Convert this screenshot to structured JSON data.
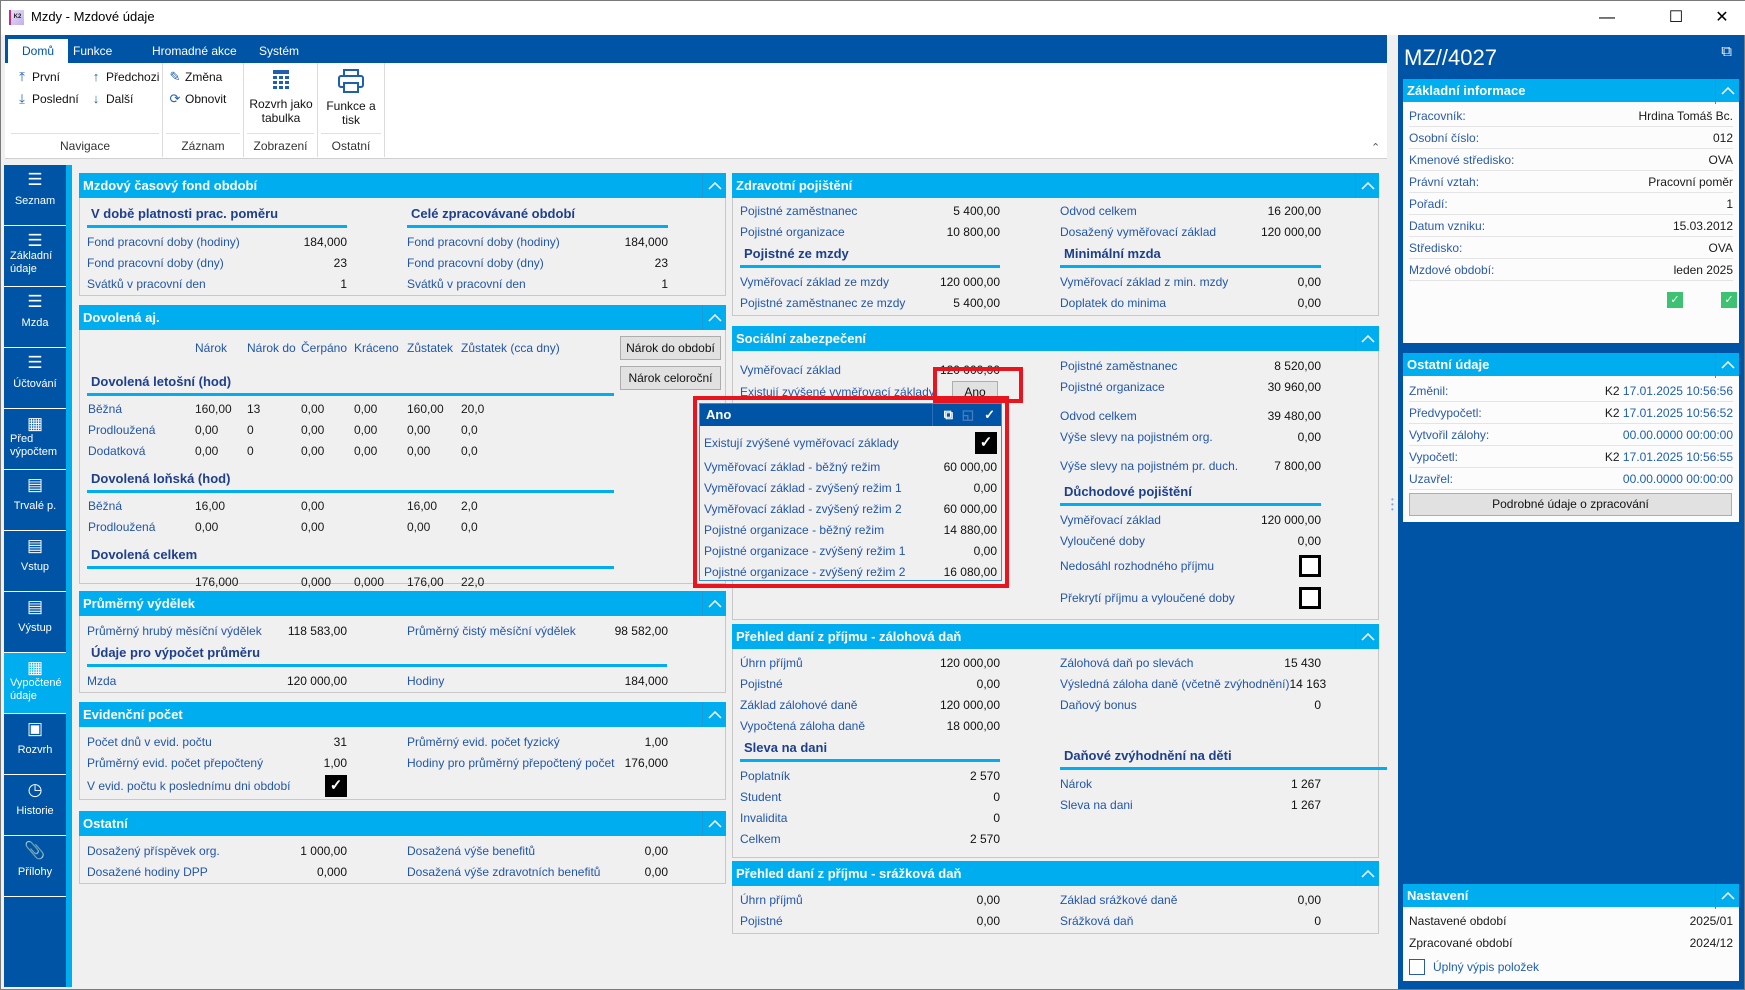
{
  "window": {
    "title": "Mzdy - Mzdové údaje",
    "app_icon_text": "K2"
  },
  "ribbon": {
    "tabs": [
      "Domů",
      "Funkce",
      "Hromadné akce",
      "Systém"
    ],
    "active_tab": "Domů",
    "groups": {
      "navigace": {
        "label": "Navigace",
        "first": "První",
        "prev": "Předchozi",
        "last": "Poslední",
        "next": "Další"
      },
      "zaznam": {
        "label": "Záznam",
        "edit": "Změna",
        "refresh": "Obnovit"
      },
      "zobrazeni": {
        "label": "Zobrazení",
        "schedule_table": "Rozvrh jako tabulka"
      },
      "ostatni": {
        "label": "Ostatní",
        "print": "Funkce a tisk"
      }
    }
  },
  "sidebar": {
    "items": [
      {
        "label": "Seznam",
        "icon": "list-icon"
      },
      {
        "label": "Základní údaje",
        "icon": "list-icon"
      },
      {
        "label": "Mzda",
        "icon": "list-icon"
      },
      {
        "label": "Účtování",
        "icon": "list-icon"
      },
      {
        "label": "Před výpočtem",
        "icon": "calculator-icon"
      },
      {
        "label": "Trvalé p.",
        "icon": "box-icon"
      },
      {
        "label": "Vstup",
        "icon": "box-icon"
      },
      {
        "label": "Výstup",
        "icon": "box-icon"
      },
      {
        "label": "Vypočtené údaje",
        "icon": "calculator-icon",
        "active": true
      },
      {
        "label": "Rozvrh",
        "icon": "calendar-icon"
      },
      {
        "label": "Historie",
        "icon": "clock-icon"
      },
      {
        "label": "Přílohy",
        "icon": "paperclip-icon"
      }
    ]
  },
  "main": {
    "fond": {
      "title": "Mzdový časový fond období",
      "left": [
        {
          "type": "sub",
          "label": "V době platnosti prac. poměru"
        },
        {
          "label": "Fond pracovní doby (hodiny)",
          "value": "184,000"
        },
        {
          "label": "Fond pracovní doby (dny)",
          "value": "23"
        },
        {
          "label": "Svátků v pracovní den",
          "value": "1"
        }
      ],
      "right": [
        {
          "type": "sub",
          "label": "Celé zpracovávané období"
        },
        {
          "label": "Fond pracovní doby (hodiny)",
          "value": "184,000"
        },
        {
          "label": "Fond pracovní doby (dny)",
          "value": "23"
        },
        {
          "label": "Svátků v pracovní den",
          "value": "1"
        }
      ]
    },
    "dovolena": {
      "title": "Dovolená aj.",
      "columns": [
        "Nárok",
        "Nárok do",
        "Čerpáno",
        "Kráceno",
        "Zůstatek",
        "Zůstatek (cca dny)"
      ],
      "buttons": [
        "Nárok do období",
        "Nárok celoroční"
      ],
      "sections": [
        {
          "title": "Dovolená letošní (hod)",
          "rows": [
            {
              "label": "Běžná",
              "cells": [
                "160,00",
                "13",
                "0,00",
                "0,00",
                "160,00",
                "20,0"
              ]
            },
            {
              "label": "Prodloužená",
              "cells": [
                "0,00",
                "0",
                "0,00",
                "0,00",
                "0,00",
                "0,0"
              ]
            },
            {
              "label": "Dodatková",
              "cells": [
                "0,00",
                "0",
                "0,00",
                "0,00",
                "0,00",
                "0,0"
              ]
            }
          ]
        },
        {
          "title": "Dovolená loňská (hod)",
          "rows": [
            {
              "label": "Běžná",
              "cells": [
                "16,00",
                "",
                "0,00",
                "",
                "16,00",
                "2,0"
              ]
            },
            {
              "label": "Prodloužená",
              "cells": [
                "0,00",
                "",
                "0,00",
                "",
                "0,00",
                "0,0"
              ]
            }
          ]
        },
        {
          "title": "Dovolená celkem",
          "rows": [
            {
              "label": "",
              "cells": [
                "176,000",
                "",
                "0,000",
                "0,000",
                "176,00",
                "22,0"
              ]
            }
          ]
        }
      ]
    },
    "prumer": {
      "title": "Průměrný výdělek",
      "left": [
        {
          "label": "Průměrný hrubý měsíční výdělek",
          "value": "118 583,00"
        },
        {
          "type": "subwide",
          "label": "Údaje pro výpočet průměru"
        },
        {
          "label": "Mzda",
          "value": "120 000,00"
        }
      ],
      "right": [
        {
          "label": "Průměrný čistý měsíční výdělek",
          "value": "98 582,00"
        },
        {
          "type": "spacer"
        },
        {
          "label": "Hodiny",
          "value": "184,000"
        }
      ]
    },
    "evid": {
      "title": "Evidenční počet",
      "left": [
        {
          "label": "Počet dnů v evid. počtu",
          "value": "31"
        },
        {
          "label": "Průměrný evid. počet přepočtený",
          "value": "1,00"
        },
        {
          "type": "check",
          "label": "V evid. počtu k poslednímu dni období",
          "checked": true
        }
      ],
      "right": [
        {
          "label": "Průměrný evid. počet fyzický",
          "value": "1,00"
        },
        {
          "label": "Hodiny pro průměrný přepočtený počet",
          "value": "176,000"
        }
      ]
    },
    "ostatni": {
      "title": "Ostatní",
      "left": [
        {
          "label": "Dosažený příspěvek org.",
          "value": "1 000,00"
        },
        {
          "label": "Dosažené hodiny DPP",
          "value": "0,000"
        }
      ],
      "right": [
        {
          "label": "Dosažená výše benefitů",
          "value": "0,00"
        },
        {
          "label": "Dosažená výše zdravotních benefitů",
          "value": "0,00"
        }
      ]
    },
    "zdrav": {
      "title": "Zdravotní pojištění",
      "left": [
        {
          "label": "Pojistné zaměstnanec",
          "value": "5 400,00"
        },
        {
          "label": "Pojistné organizace",
          "value": "10 800,00"
        },
        {
          "type": "sub",
          "label": "Pojistné ze mzdy"
        },
        {
          "label": "Vyměřovací základ ze mzdy",
          "value": "120 000,00"
        },
        {
          "label": "Pojistné zaměstnanec ze mzdy",
          "value": "5 400,00"
        }
      ],
      "right": [
        {
          "label": "Odvod celkem",
          "value": "16 200,00"
        },
        {
          "label": "Dosažený vyměřovací základ",
          "value": "120 000,00"
        },
        {
          "type": "sub",
          "label": "Minimální mzda"
        },
        {
          "label": "Vyměřovací základ z min. mzdy",
          "value": "0,00"
        },
        {
          "label": "Doplatek do minima",
          "value": "0,00"
        }
      ]
    },
    "social": {
      "title": "Sociální zabezpečení",
      "left": [
        {
          "label": "Vyměřovací základ",
          "value": "120 000,00"
        },
        {
          "type": "button",
          "label": "Existují zvýšené vyměřovací základy",
          "value": "Ano"
        }
      ],
      "right": [
        {
          "label": "Pojistné zaměstnanec",
          "value": "8 520,00"
        },
        {
          "label": "Pojistné organizace",
          "value": "30 960,00"
        },
        {
          "label": "Odvod celkem",
          "value": "39 480,00"
        },
        {
          "label": "Výše slevy na pojistném org.",
          "value": "0,00"
        },
        {
          "label": "Výše slevy na pojistném pr. duch.",
          "value": "7 800,00"
        },
        {
          "type": "sub",
          "label": "Důchodové pojištění"
        },
        {
          "label": "Vyměřovací základ",
          "value": "120 000,00"
        },
        {
          "label": "Vyloučené doby",
          "value": "0,00"
        },
        {
          "type": "check",
          "label": "Nedosáhl rozhodného příjmu",
          "checked": false
        },
        {
          "type": "check",
          "label": "Překrytí příjmu a vyloučené doby",
          "checked": false
        }
      ]
    },
    "zaloh": {
      "title": "Přehled daní z příjmu - zálohová daň",
      "left": [
        {
          "label": "Úhrn příjmů",
          "value": "120 000,00"
        },
        {
          "label": "Pojistné",
          "value": "0,00"
        },
        {
          "label": "Základ zálohové daně",
          "value": "120 000,00"
        },
        {
          "label": "Vypočtená záloha daně",
          "value": "18 000,00"
        },
        {
          "type": "sub",
          "label": "Sleva na dani"
        },
        {
          "label": "Poplatník",
          "value": "2 570"
        },
        {
          "label": "Student",
          "value": "0"
        },
        {
          "label": "Invalidita",
          "value": "0"
        },
        {
          "label": "Celkem",
          "value": "2 570"
        }
      ],
      "right": [
        {
          "label": "Zálohová daň po slevách",
          "value": "15 430"
        },
        {
          "label": "Výsledná záloha daně (včetně zvýhodnění)",
          "value": "14 163"
        },
        {
          "label": "Daňový bonus",
          "value": "0"
        },
        {
          "type": "spacer"
        },
        {
          "type": "subwide",
          "label": "Daňové zvýhodnění na děti"
        },
        {
          "label": "Nárok",
          "value": "1 267"
        },
        {
          "label": "Sleva na dani",
          "value": "1 267"
        }
      ]
    },
    "srazk": {
      "title": "Přehled daní z příjmu - srážková daň",
      "left": [
        {
          "label": "Úhrn příjmů",
          "value": "0,00"
        },
        {
          "label": "Pojistné",
          "value": "0,00"
        }
      ],
      "right": [
        {
          "label": "Základ srážkové daně",
          "value": "0,00"
        },
        {
          "label": "Srážková daň",
          "value": "0"
        }
      ]
    }
  },
  "popup": {
    "title": "Ano",
    "rows": [
      {
        "type": "check",
        "label": "Existují zvýšené vyměřovací základy",
        "checked": true
      },
      {
        "label": "Vyměřovací základ - běžný režim",
        "value": "60 000,00"
      },
      {
        "label": "Vyměřovací základ - zvýšený režim 1",
        "value": "0,00"
      },
      {
        "label": "Vyměřovací základ - zvýšený režim 2",
        "value": "60 000,00"
      },
      {
        "label": "Pojistné organizace - běžný režim",
        "value": "14 880,00"
      },
      {
        "label": "Pojistné organizace - zvýšený režim 1",
        "value": "0,00"
      },
      {
        "label": "Pojistné organizace - zvýšený režim 2",
        "value": "16 080,00"
      }
    ]
  },
  "right_panel": {
    "title": "MZ//4027",
    "zakladni": {
      "title": "Základní informace",
      "rows": [
        {
          "label": "Pracovník:",
          "value": "Hrdina Tomáš Bc."
        },
        {
          "label": "Osobní číslo:",
          "value": "012"
        },
        {
          "label": "Kmenové středisko:",
          "value": "OVA"
        },
        {
          "label": "Právní vztah:",
          "value": "Pracovní poměr"
        },
        {
          "label": "Pořadí:",
          "value": "1"
        },
        {
          "label": "Datum vzniku:",
          "value": "15.03.2012"
        },
        {
          "label": "Středisko:",
          "value": "OVA"
        },
        {
          "label": "Mzdové období:",
          "value": "leden 2025"
        }
      ],
      "status_checks": [
        true,
        true
      ]
    },
    "ostatni": {
      "title": "Ostatní údaje",
      "rows": [
        {
          "label": "Změnil:",
          "user": "K2",
          "value": "17.01.2025 10:56:56"
        },
        {
          "label": "Předvypočetl:",
          "user": "K2",
          "value": "17.01.2025 10:56:52"
        },
        {
          "label": "Vytvořil zálohy:",
          "user": "",
          "value": "00.00.0000 00:00:00"
        },
        {
          "label": "Vypočetl:",
          "user": "K2",
          "value": "17.01.2025 10:56:55"
        },
        {
          "label": "Uzavřel:",
          "user": "",
          "value": "00.00.0000 00:00:00"
        }
      ],
      "button": "Podrobné údaje o zpracování"
    },
    "nastaveni": {
      "title": "Nastavení",
      "rows": [
        {
          "label": "Nastavené období",
          "value": "2025/01"
        },
        {
          "label": "Zpracované období",
          "value": "2024/12"
        }
      ],
      "checkbox_label": "Úplný výpis položek",
      "checkbox_checked": false
    }
  },
  "colors": {
    "ribbon_blue": "#0054a6",
    "header_cyan": "#00adef",
    "highlight_red": "#e8141e",
    "label_blue": "#2256a8"
  }
}
